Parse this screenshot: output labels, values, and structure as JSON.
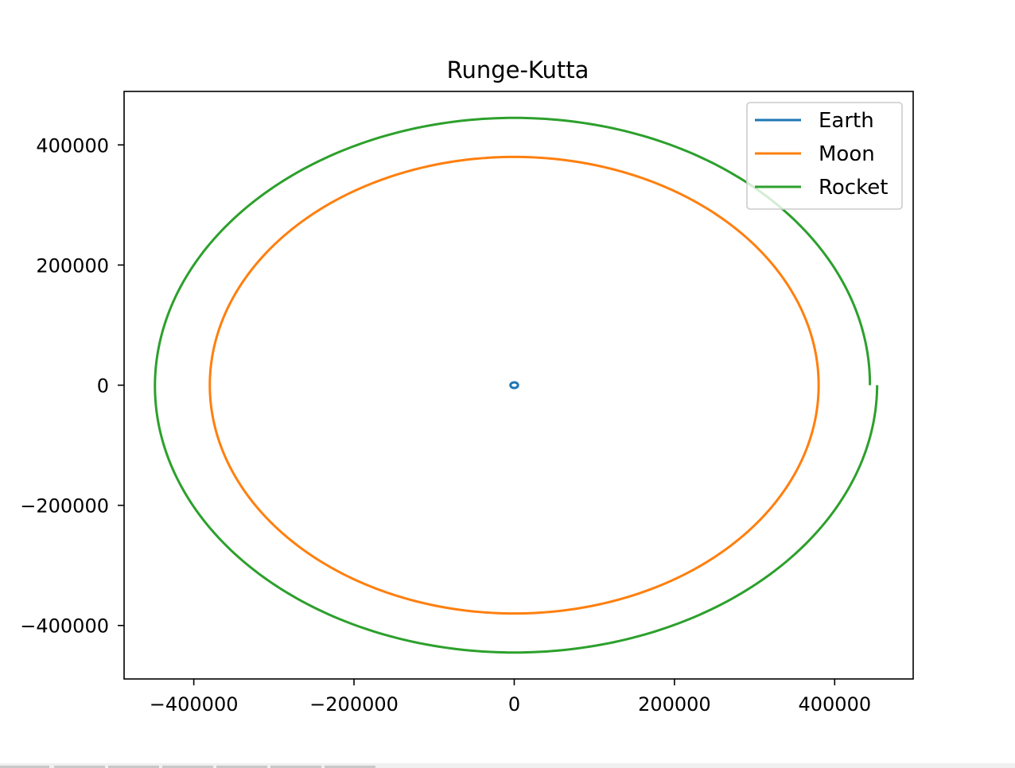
{
  "chart_data": {
    "type": "line",
    "title": "Runge-Kutta",
    "xlabel": "",
    "ylabel": "",
    "xlim": [
      -487000,
      498000
    ],
    "ylim": [
      -489000,
      489000
    ],
    "xticks": [
      -400000,
      -200000,
      0,
      200000,
      400000
    ],
    "yticks": [
      -400000,
      -200000,
      0,
      200000,
      400000
    ],
    "xtick_labels": [
      "−400000",
      "−200000",
      "0",
      "200000",
      "400000"
    ],
    "ytick_labels": [
      "−400000",
      "−200000",
      "0",
      "200000",
      "400000"
    ],
    "grid": false,
    "legend_position": "upper right",
    "series": [
      {
        "name": "Earth",
        "color": "#1f77b4",
        "shape": "ellipse",
        "center": [
          0,
          0
        ],
        "radius_x": 4700,
        "radius_y": 4700,
        "start_angle_deg": 0,
        "end_angle_deg": 360
      },
      {
        "name": "Moon",
        "color": "#ff7f0e",
        "shape": "ellipse",
        "center": [
          0,
          0
        ],
        "radius_x": 380000,
        "radius_y": 380000,
        "start_angle_deg": 0,
        "end_angle_deg": 360
      },
      {
        "name": "Rocket",
        "color": "#2ca02c",
        "shape": "spiral",
        "center": [
          0,
          0
        ],
        "start_point": [
          444000,
          0
        ],
        "end_point": [
          453000,
          0
        ],
        "radius_y": 445000,
        "start_angle_deg": 0,
        "end_angle_deg": 360
      }
    ]
  }
}
